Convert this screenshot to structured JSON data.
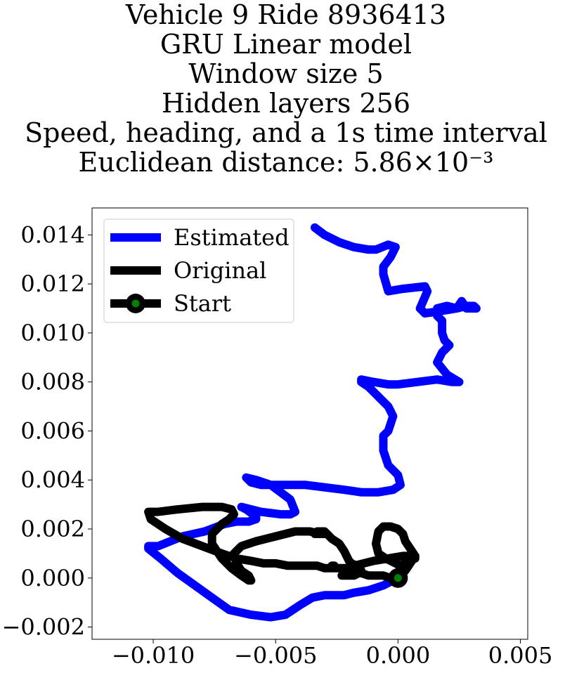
{
  "title_lines": [
    "Vehicle 9 Ride 8936413",
    "GRU Linear model",
    "Window size 5",
    "Hidden layers 256",
    "Speed, heading, and a 1s time interval",
    "Euclidean distance: 5.86×10⁻³"
  ],
  "chart_data": {
    "type": "line",
    "title": "Vehicle 9 Ride 8936413 / GRU Linear model / Window size 5 / Hidden layers 256 / Speed, heading, and a 1s time interval / Euclidean distance: 5.86×10⁻³",
    "xlabel": "",
    "ylabel": "",
    "xlim": [
      -0.0125,
      0.0053
    ],
    "ylim": [
      -0.0025,
      0.0151
    ],
    "xticks": [
      -0.01,
      -0.005,
      0.0,
      0.005
    ],
    "xtick_labels": [
      "−0.010",
      "−0.005",
      "0.000",
      "0.005"
    ],
    "yticks": [
      -0.002,
      0.0,
      0.002,
      0.004,
      0.006,
      0.008,
      0.01,
      0.012,
      0.014
    ],
    "ytick_labels": [
      "−0.002",
      "0.000",
      "0.002",
      "0.004",
      "0.006",
      "0.008",
      "0.010",
      "0.012",
      "0.014"
    ],
    "grid": false,
    "legend_position": "upper-left",
    "series": [
      {
        "name": "Estimated",
        "color": "#0000ff",
        "x": [
          0.0,
          -0.0006,
          -0.0012,
          -0.0018,
          -0.0022,
          -0.0027,
          -0.003,
          -0.0035,
          -0.004,
          -0.0046,
          -0.0052,
          -0.006,
          -0.0069,
          -0.0076,
          -0.0083,
          -0.009,
          -0.0097,
          -0.0102,
          -0.0102,
          -0.0098,
          -0.0088,
          -0.0079,
          -0.0071,
          -0.0066,
          -0.0061,
          -0.0058,
          -0.0058,
          -0.0062,
          -0.0064,
          -0.0064,
          -0.006,
          -0.0056,
          -0.0048,
          -0.0044,
          -0.0042,
          -0.0044,
          -0.0052,
          -0.0058,
          -0.0062,
          -0.006,
          -0.0056,
          -0.005,
          -0.0038,
          -0.003,
          -0.0022,
          -0.0015,
          -0.0008,
          -0.0002,
          0.0001,
          0.0,
          -0.0004,
          -0.0006,
          -0.0006,
          -0.0004,
          -0.0002,
          -0.0004,
          -0.0008,
          -0.0012,
          -0.0015,
          -0.0015,
          -0.001,
          -0.0004,
          0.0,
          0.0008,
          0.0016,
          0.0022,
          0.0025,
          0.002,
          0.0016,
          0.0018,
          0.0021,
          0.0019,
          0.0018,
          0.0018,
          0.0016,
          0.0016,
          0.002,
          0.0024,
          0.0028,
          0.0031,
          0.0032,
          0.0028,
          0.0026,
          0.0024,
          0.0018,
          0.0011,
          0.0009,
          0.0012,
          0.0011,
          0.0002,
          -0.0004,
          -0.0006,
          -0.0006,
          -0.0003,
          -0.0001,
          -0.0004,
          -0.0009,
          -0.0012,
          -0.0018,
          -0.0024,
          -0.003,
          -0.0034
        ],
        "y": [
          0.0,
          -0.0003,
          -0.0005,
          -0.0006,
          -0.0007,
          -0.0007,
          -0.0007,
          -0.0008,
          -0.0011,
          -0.0015,
          -0.0016,
          -0.0015,
          -0.0013,
          -0.0008,
          -0.0003,
          0.0002,
          0.0008,
          0.0012,
          0.0013,
          0.0013,
          0.0017,
          0.0019,
          0.0022,
          0.0023,
          0.0023,
          0.0024,
          0.0025,
          0.0028,
          0.0029,
          0.0029,
          0.0028,
          0.0027,
          0.0026,
          0.0026,
          0.0027,
          0.0032,
          0.0038,
          0.004,
          0.0041,
          0.0039,
          0.0038,
          0.0038,
          0.0038,
          0.0037,
          0.0036,
          0.0035,
          0.0035,
          0.0036,
          0.0038,
          0.0042,
          0.0046,
          0.0052,
          0.0058,
          0.006,
          0.0066,
          0.007,
          0.0074,
          0.0078,
          0.008,
          0.0081,
          0.008,
          0.0079,
          0.0079,
          0.008,
          0.0081,
          0.008,
          0.008,
          0.0083,
          0.0088,
          0.0092,
          0.0095,
          0.0097,
          0.01,
          0.0105,
          0.0107,
          0.011,
          0.0111,
          0.011,
          0.0111,
          0.0111,
          0.011,
          0.011,
          0.0113,
          0.011,
          0.0109,
          0.0108,
          0.011,
          0.0117,
          0.0119,
          0.0118,
          0.0117,
          0.0124,
          0.0127,
          0.0131,
          0.0135,
          0.0136,
          0.0134,
          0.0134,
          0.0135,
          0.0137,
          0.014,
          0.0143
        ]
      },
      {
        "name": "Original",
        "color": "#000000",
        "x": [
          0.0,
          0.0003,
          0.0005,
          0.0007,
          0.0005,
          0.0003,
          0.0002,
          0.0,
          -0.0003,
          -0.0006,
          -0.0008,
          -0.0009,
          -0.0008,
          -0.0005,
          -0.0001,
          0.0001,
          0.0003,
          0.0005,
          0.0007,
          0.0007,
          0.0002,
          -0.0004,
          -0.001,
          -0.0014,
          -0.0018,
          -0.0021,
          -0.0024,
          -0.0026,
          -0.0027,
          -0.0027,
          -0.0026,
          -0.0026,
          -0.0027,
          -0.003,
          -0.0033,
          -0.0036,
          -0.004,
          -0.0045,
          -0.005,
          -0.0055,
          -0.006,
          -0.0066,
          -0.0072,
          -0.008,
          -0.0088,
          -0.0095,
          -0.0101,
          -0.0102,
          -0.0098,
          -0.009,
          -0.008,
          -0.0072,
          -0.0068,
          -0.0067,
          -0.0069,
          -0.0072,
          -0.0076,
          -0.0076,
          -0.0072,
          -0.0068,
          -0.0064,
          -0.0061,
          -0.006,
          -0.0061,
          -0.0064,
          -0.0066,
          -0.0067,
          -0.0064,
          -0.0058,
          -0.005,
          -0.0042,
          -0.0036,
          -0.0032,
          -0.003,
          -0.003,
          -0.0031,
          -0.0032,
          -0.0033,
          -0.0034,
          -0.0034,
          -0.0033,
          -0.003,
          -0.0029,
          -0.0027,
          -0.0024,
          -0.0022,
          -0.0021,
          -0.002,
          -0.0019,
          -0.0017,
          -0.0016,
          -0.0015,
          -0.0016,
          -0.0018,
          -0.0021,
          -0.0023,
          -0.0022,
          -0.0019,
          -0.0015,
          -0.0012,
          -0.0009,
          -0.0006,
          -0.0003,
          -0.0001,
          0.0001,
          0.0002
        ],
        "y": [
          0.0,
          0.0003,
          0.0006,
          0.0009,
          0.0012,
          0.0015,
          0.0018,
          0.002,
          0.0021,
          0.0021,
          0.0019,
          0.0014,
          0.001,
          0.0008,
          0.0006,
          0.0005,
          0.0006,
          0.0007,
          0.0008,
          0.0009,
          0.0009,
          0.0008,
          0.0007,
          0.0006,
          0.0005,
          0.0004,
          0.0004,
          0.0004,
          0.0004,
          0.0005,
          0.0005,
          0.0005,
          0.0004,
          0.0004,
          0.0005,
          0.0005,
          0.0005,
          0.0005,
          0.0006,
          0.0006,
          0.0007,
          0.0008,
          0.001,
          0.0013,
          0.0016,
          0.002,
          0.0024,
          0.0027,
          0.0027,
          0.0028,
          0.0029,
          0.0029,
          0.0028,
          0.0026,
          0.0024,
          0.0022,
          0.0018,
          0.0014,
          0.0008,
          0.0004,
          0.0001,
          -0.0001,
          -0.0001,
          0.0001,
          0.0003,
          0.0006,
          0.001,
          0.0013,
          0.0015,
          0.0017,
          0.0019,
          0.0019,
          0.0018,
          0.0018,
          0.0018,
          0.0018,
          0.0018,
          0.0018,
          0.0018,
          0.0018,
          0.0019,
          0.0019,
          0.0018,
          0.0016,
          0.0014,
          0.0011,
          0.0009,
          0.0007,
          0.0006,
          0.0005,
          0.0004,
          0.0003,
          0.0002,
          0.0001,
          0.0001,
          0.0001,
          0.0001,
          0.0002,
          0.0002,
          0.0001,
          0.0001,
          0.0001,
          0.0,
          0.0,
          0.0,
          0.0
        ]
      }
    ],
    "start_point": {
      "name": "Start",
      "x": 0.0,
      "y": 0.0,
      "marker_color": "#000000",
      "fill_color": "#008000"
    }
  }
}
